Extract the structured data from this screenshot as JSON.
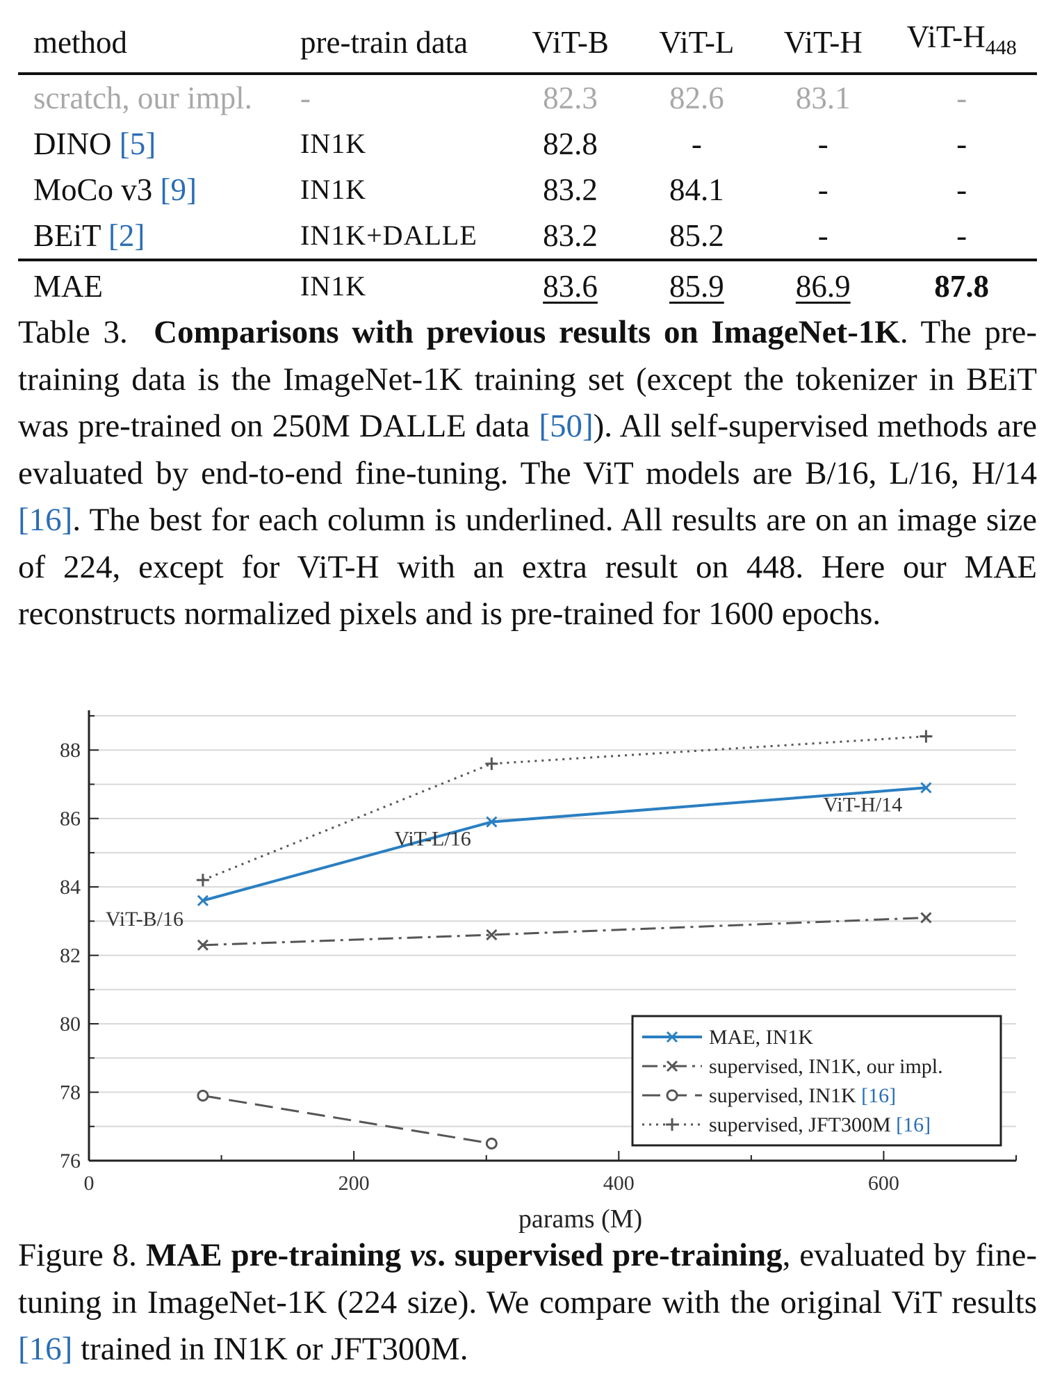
{
  "table": {
    "headers": [
      "method",
      "pre-train data",
      "ViT-B",
      "ViT-L",
      "ViT-H",
      "ViT-H",
      "448"
    ],
    "rows": [
      {
        "method": "scratch, our impl.",
        "ref": "",
        "data": "-",
        "vals": [
          "82.3",
          "82.6",
          "83.1",
          "-"
        ]
      },
      {
        "method": "DINO",
        "ref": "[5]",
        "data": "IN1K",
        "vals": [
          "82.8",
          "-",
          "-",
          "-"
        ]
      },
      {
        "method": "MoCo v3",
        "ref": "[9]",
        "data": "IN1K",
        "vals": [
          "83.2",
          "84.1",
          "-",
          "-"
        ]
      },
      {
        "method": "BEiT",
        "ref": "[2]",
        "data": "IN1K+DALLE",
        "vals": [
          "83.2",
          "85.2",
          "-",
          "-"
        ]
      },
      {
        "method": "MAE",
        "ref": "",
        "data": "IN1K",
        "vals": [
          "83.6",
          "85.9",
          "86.9",
          "87.8"
        ]
      }
    ]
  },
  "table_caption": {
    "label": "Table 3.",
    "title": "Comparisons with previous results on ImageNet-1K",
    "t1": ". The pre-training data is the ImageNet-1K training set (except the tokenizer in BEiT was pre-trained on 250M DALLE data ",
    "r1": "[50]",
    "t2": "). All self-supervised methods are evaluated by end-to-end fine-tuning. The ViT models are B/16, L/16, H/14 ",
    "r2": "[16]",
    "t3": ". The best for each column is underlined. All results are on an image size of 224, except for ViT-H with an extra result on 448. Here our MAE reconstructs normalized pixels and is pre-trained for 1600 epochs."
  },
  "chart_data": {
    "type": "line",
    "xlabel": "params (M)",
    "ylabel": "",
    "xlim": [
      0,
      700
    ],
    "ylim": [
      76,
      89
    ],
    "xticks": [
      0,
      200,
      400,
      600
    ],
    "yticks": [
      76,
      78,
      80,
      82,
      84,
      86,
      88
    ],
    "grid": "horizontal",
    "legend_position": "bottom-right",
    "series": [
      {
        "name": "MAE, IN1K",
        "style": "solid",
        "marker": "x",
        "color": "#2a7fc1",
        "x": [
          86,
          304,
          632
        ],
        "y": [
          83.6,
          85.9,
          86.9
        ]
      },
      {
        "name": "supervised, IN1K, our impl.",
        "style": "dashdot",
        "marker": "x",
        "color": "#555555",
        "x": [
          86,
          304,
          632
        ],
        "y": [
          82.3,
          82.6,
          83.1
        ]
      },
      {
        "name": "supervised, IN1K",
        "ref": "[16]",
        "style": "dashed",
        "marker": "o",
        "color": "#555555",
        "x": [
          86,
          304
        ],
        "y": [
          77.9,
          76.5
        ]
      },
      {
        "name": "supervised, JFT300M",
        "ref": "[16]",
        "style": "dotted",
        "marker": "+",
        "color": "#555555",
        "x": [
          86,
          304,
          632
        ],
        "y": [
          84.2,
          87.6,
          88.4
        ]
      }
    ],
    "annotations": [
      {
        "text": "ViT-B/16",
        "x": 86,
        "y": 83.6
      },
      {
        "text": "ViT-L/16",
        "x": 304,
        "y": 85.9
      },
      {
        "text": "ViT-H/14",
        "x": 632,
        "y": 86.9
      }
    ]
  },
  "figure_caption": {
    "label": "Figure 8.",
    "title_a": "MAE pre-training ",
    "title_vs": "vs",
    "title_b": ". supervised pre-training",
    "t1": ", evaluated by fine-tuning in ImageNet-1K (224 size). We compare with the original ViT results ",
    "r1": "[16]",
    "t2": " trained in IN1K or JFT300M."
  }
}
